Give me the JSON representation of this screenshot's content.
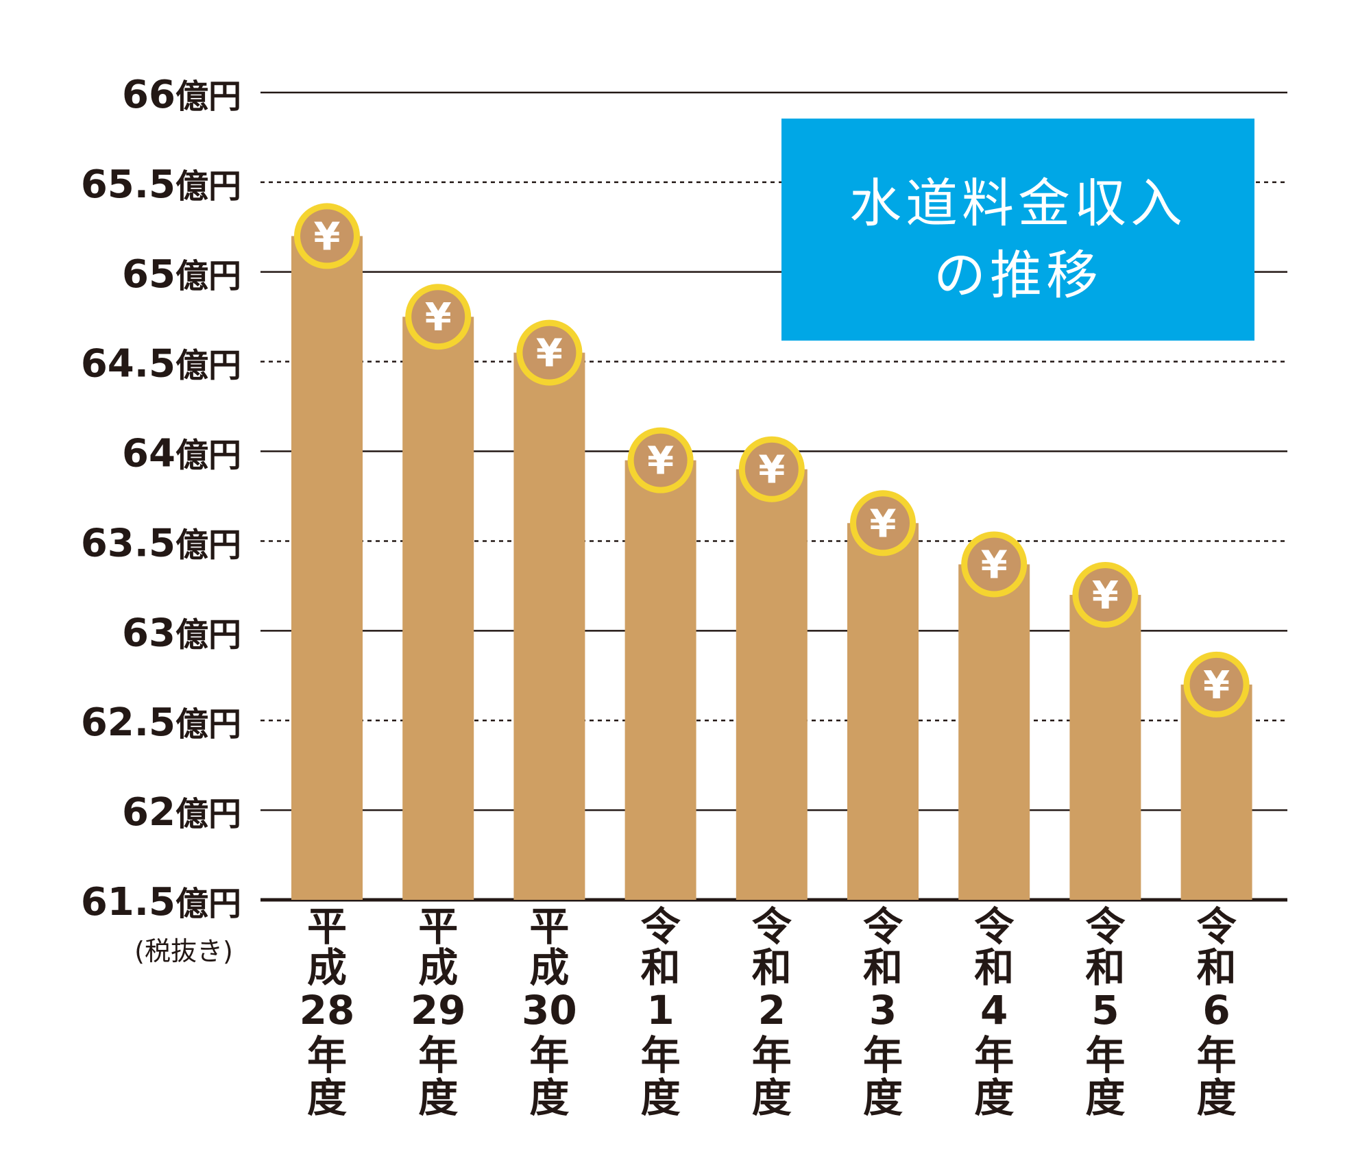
{
  "chart_data": {
    "type": "bar",
    "title": "水道料金収入の推移",
    "title_lines": [
      "水道料金収入",
      "の推移"
    ],
    "unit_note": "(税抜き)",
    "categories": [
      [
        "平",
        "成",
        "28",
        "年",
        "度"
      ],
      [
        "平",
        "成",
        "29",
        "年",
        "度"
      ],
      [
        "平",
        "成",
        "30",
        "年",
        "度"
      ],
      [
        "令",
        "和",
        "1",
        "年",
        "度"
      ],
      [
        "令",
        "和",
        "2",
        "年",
        "度"
      ],
      [
        "令",
        "和",
        "3",
        "年",
        "度"
      ],
      [
        "令",
        "和",
        "4",
        "年",
        "度"
      ],
      [
        "令",
        "和",
        "5",
        "年",
        "度"
      ],
      [
        "令",
        "和",
        "6",
        "年",
        "度"
      ]
    ],
    "values": [
      65.2,
      64.75,
      64.55,
      63.95,
      63.9,
      63.6,
      63.37,
      63.2,
      62.7
    ],
    "ylim": [
      61.5,
      66
    ],
    "yticks": [
      {
        "value": 66,
        "label": "66",
        "major": true
      },
      {
        "value": 65.5,
        "label": "65.5",
        "major": false
      },
      {
        "value": 65,
        "label": "65",
        "major": true
      },
      {
        "value": 64.5,
        "label": "64.5",
        "major": false
      },
      {
        "value": 64,
        "label": "64",
        "major": true
      },
      {
        "value": 63.5,
        "label": "63.5",
        "major": false
      },
      {
        "value": 63,
        "label": "63",
        "major": true
      },
      {
        "value": 62.5,
        "label": "62.5",
        "major": false
      },
      {
        "value": 62,
        "label": "62",
        "major": true
      },
      {
        "value": 61.5,
        "label": "61.5",
        "major": true
      }
    ],
    "ytick_unit": "億円",
    "marker_symbol": "¥",
    "grid": true,
    "legend": "none",
    "colors": {
      "bar": "#cf9f63",
      "coin_ring": "#f5d430",
      "coin_face": "#c89664",
      "title_bg": "#00a7e6",
      "grid": "#231815"
    }
  }
}
